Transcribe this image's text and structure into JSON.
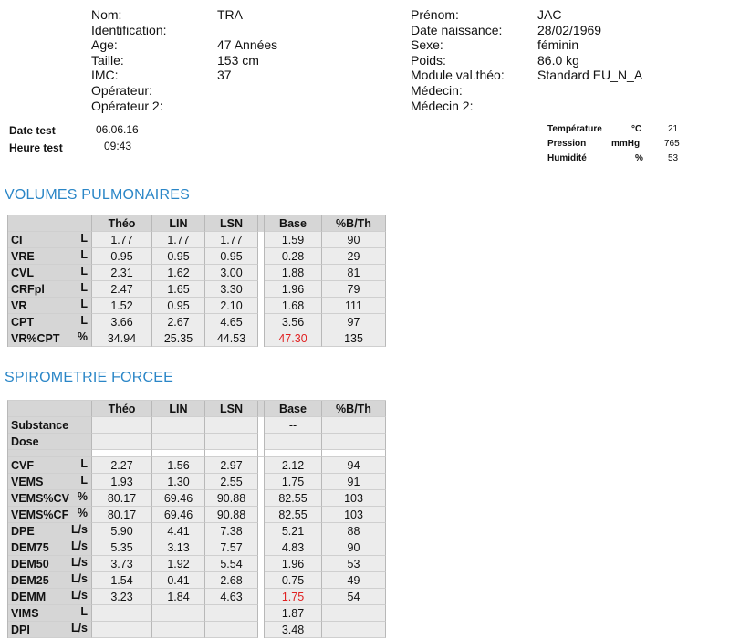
{
  "patient": {
    "left": [
      {
        "label": "Nom:",
        "value": "TRA"
      },
      {
        "label": "Identification:",
        "value": ""
      },
      {
        "label": "Age:",
        "value": "47 Années"
      },
      {
        "label": "Taille:",
        "value": "153 cm"
      },
      {
        "label": "IMC:",
        "value": "37"
      },
      {
        "label": "Opérateur:",
        "value": ""
      },
      {
        "label": "Opérateur 2:",
        "value": ""
      }
    ],
    "right": [
      {
        "label": "Prénom:",
        "value": "JAC"
      },
      {
        "label": "Date naissance:",
        "value": "28/02/1969"
      },
      {
        "label": "Sexe:",
        "value": "féminin"
      },
      {
        "label": "Poids:",
        "value": "86.0 kg"
      },
      {
        "label": "Module val.théo:",
        "value": "Standard EU_N_A"
      },
      {
        "label": "Médecin:",
        "value": ""
      },
      {
        "label": "Médecin 2:",
        "value": ""
      }
    ]
  },
  "test": {
    "date_label": "Date test",
    "date_value": "06.06.16",
    "time_label": "Heure test",
    "time_value": "09:43"
  },
  "conditions": [
    {
      "label": "Température",
      "unit": "°C",
      "value": "21"
    },
    {
      "label": "Pression",
      "unit": "mmHg",
      "value": "765"
    },
    {
      "label": "Humidité",
      "unit": "%",
      "value": "53"
    }
  ],
  "volumes": {
    "title": "VOLUMES PULMONAIRES",
    "columns": [
      "Théo",
      "LIN",
      "LSN",
      "Base",
      "%B/Th"
    ],
    "rows": [
      {
        "name": "CI",
        "unit": "L",
        "theo": "1.77",
        "lin": "1.77",
        "lsn": "1.77",
        "base": "1.59",
        "pct": "90"
      },
      {
        "name": "VRE",
        "unit": "L",
        "theo": "0.95",
        "lin": "0.95",
        "lsn": "0.95",
        "base": "0.28",
        "pct": "29"
      },
      {
        "name": "CVL",
        "unit": "L",
        "theo": "2.31",
        "lin": "1.62",
        "lsn": "3.00",
        "base": "1.88",
        "pct": "81"
      },
      {
        "name": "CRFpl",
        "unit": "L",
        "theo": "2.47",
        "lin": "1.65",
        "lsn": "3.30",
        "base": "1.96",
        "pct": "79"
      },
      {
        "name": "VR",
        "unit": "L",
        "theo": "1.52",
        "lin": "0.95",
        "lsn": "2.10",
        "base": "1.68",
        "pct": "111"
      },
      {
        "name": "CPT",
        "unit": "L",
        "theo": "3.66",
        "lin": "2.67",
        "lsn": "4.65",
        "base": "3.56",
        "pct": "97"
      },
      {
        "name": "VR%CPT",
        "unit": "%",
        "theo": "34.94",
        "lin": "25.35",
        "lsn": "44.53",
        "base": "47.30",
        "pct": "135",
        "base_flag": true
      }
    ]
  },
  "spiro": {
    "title": "SPIROMETRIE FORCEE",
    "columns": [
      "Théo",
      "LIN",
      "LSN",
      "Base",
      "%B/Th"
    ],
    "top_rows": [
      {
        "name": "Substance",
        "unit": "",
        "theo": "",
        "lin": "",
        "lsn": "",
        "base": "--",
        "pct": ""
      },
      {
        "name": "Dose",
        "unit": "",
        "theo": "",
        "lin": "",
        "lsn": "",
        "base": "",
        "pct": ""
      }
    ],
    "rows": [
      {
        "name": "CVF",
        "unit": "L",
        "theo": "2.27",
        "lin": "1.56",
        "lsn": "2.97",
        "base": "2.12",
        "pct": "94"
      },
      {
        "name": "VEMS",
        "unit": "L",
        "theo": "1.93",
        "lin": "1.30",
        "lsn": "2.55",
        "base": "1.75",
        "pct": "91"
      },
      {
        "name": "VEMS%CV",
        "unit": "%",
        "theo": "80.17",
        "lin": "69.46",
        "lsn": "90.88",
        "base": "82.55",
        "pct": "103"
      },
      {
        "name": "VEMS%CF",
        "unit": "%",
        "theo": "80.17",
        "lin": "69.46",
        "lsn": "90.88",
        "base": "82.55",
        "pct": "103"
      },
      {
        "name": "DPE",
        "unit": "L/s",
        "theo": "5.90",
        "lin": "4.41",
        "lsn": "7.38",
        "base": "5.21",
        "pct": "88"
      },
      {
        "name": "DEM75",
        "unit": "L/s",
        "theo": "5.35",
        "lin": "3.13",
        "lsn": "7.57",
        "base": "4.83",
        "pct": "90"
      },
      {
        "name": "DEM50",
        "unit": "L/s",
        "theo": "3.73",
        "lin": "1.92",
        "lsn": "5.54",
        "base": "1.96",
        "pct": "53"
      },
      {
        "name": "DEM25",
        "unit": "L/s",
        "theo": "1.54",
        "lin": "0.41",
        "lsn": "2.68",
        "base": "0.75",
        "pct": "49"
      },
      {
        "name": "DEMM",
        "unit": "L/s",
        "theo": "3.23",
        "lin": "1.84",
        "lsn": "4.63",
        "base": "1.75",
        "pct": "54",
        "base_flag": true
      },
      {
        "name": "VIMS",
        "unit": "L",
        "theo": "",
        "lin": "",
        "lsn": "",
        "base": "1.87",
        "pct": ""
      },
      {
        "name": "DPI",
        "unit": "L/s",
        "theo": "",
        "lin": "",
        "lsn": "",
        "base": "3.48",
        "pct": ""
      }
    ]
  },
  "colors": {
    "section_title": "#2a86c7",
    "flag": "#e02020",
    "header_bg": "#d6d6d6",
    "cell_bg": "#ececec"
  }
}
